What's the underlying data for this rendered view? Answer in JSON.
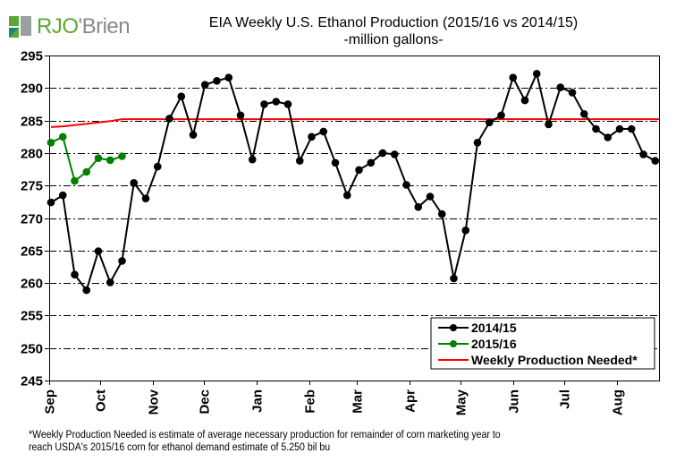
{
  "logo": {
    "part1": "RJO",
    "part2": "'Brien",
    "brand_green": "#5aa832",
    "brand_teal": "#1a8a78",
    "brand_gray": "#8a8a8a"
  },
  "header": {
    "title_line1": "EIA Weekly U.S. Ethanol Production (2015/16 vs 2014/15)",
    "title_line2": "-million  gallons-"
  },
  "footnote": {
    "line1": "*Weekly Production Needed is estimate of average necessary production for remainder of corn marketing year to",
    "line2": "reach USDA's 2015/16 corn for ethanol demand estimate of 5.250 bil bu"
  },
  "chart_data": {
    "type": "line",
    "title": "EIA Weekly U.S. Ethanol Production (2015/16 vs 2014/15)",
    "subtitle": "-million  gallons-",
    "xlabel": "",
    "ylabel": "",
    "ylim": [
      245,
      295
    ],
    "yticks": [
      245,
      250,
      255,
      260,
      265,
      270,
      275,
      280,
      285,
      290,
      295
    ],
    "xticks": [
      "Sep",
      "Oct",
      "Nov",
      "Dec",
      "Jan",
      "Feb",
      "Mar",
      "Apr",
      "May",
      "Jun",
      "Jul",
      "Aug"
    ],
    "x_unit": "weeks from start of September",
    "grid": "horizontal dash-dot",
    "legend_position": "bottom-right",
    "series": [
      {
        "name": "2014/15",
        "color": "#000000",
        "marker": "circle",
        "values": [
          272.4,
          273.5,
          261.3,
          258.9,
          264.9,
          260.1,
          263.4,
          275.4,
          273.0,
          277.9,
          285.3,
          288.7,
          282.8,
          290.5,
          291.1,
          291.6,
          285.8,
          279.0,
          287.5,
          287.9,
          287.5,
          278.8,
          282.5,
          283.3,
          278.5,
          273.5,
          277.4,
          278.5,
          280.0,
          279.8,
          275.1,
          271.7,
          273.3,
          270.6,
          260.7,
          268.1,
          281.6,
          284.7,
          285.8,
          291.6,
          288.1,
          292.2,
          284.4,
          290.1,
          289.3,
          286.0,
          283.7,
          282.4,
          283.7,
          283.7,
          279.8,
          278.8
        ]
      },
      {
        "name": "2015/16",
        "color": "#008000",
        "marker": "circle",
        "values": [
          281.6,
          282.5,
          275.7,
          277.1,
          279.2,
          278.9,
          279.5
        ]
      },
      {
        "name": "Weekly Production Needed*",
        "color": "#ff0000",
        "marker": "none",
        "values": [
          284.0,
          284.1,
          284.3,
          284.5,
          284.7,
          284.9,
          285.2,
          285.2,
          285.2,
          285.2,
          285.2,
          285.2,
          285.2,
          285.2,
          285.2,
          285.2,
          285.2,
          285.2,
          285.2,
          285.2,
          285.2,
          285.2,
          285.2,
          285.2,
          285.2,
          285.2,
          285.2,
          285.2,
          285.2,
          285.2,
          285.2,
          285.2,
          285.2,
          285.2,
          285.2,
          285.2,
          285.2,
          285.2,
          285.2,
          285.2,
          285.2,
          285.2,
          285.2,
          285.2,
          285.2,
          285.2,
          285.2,
          285.2,
          285.2,
          285.2,
          285.2,
          285.2,
          285.2,
          285.2
        ]
      }
    ]
  }
}
